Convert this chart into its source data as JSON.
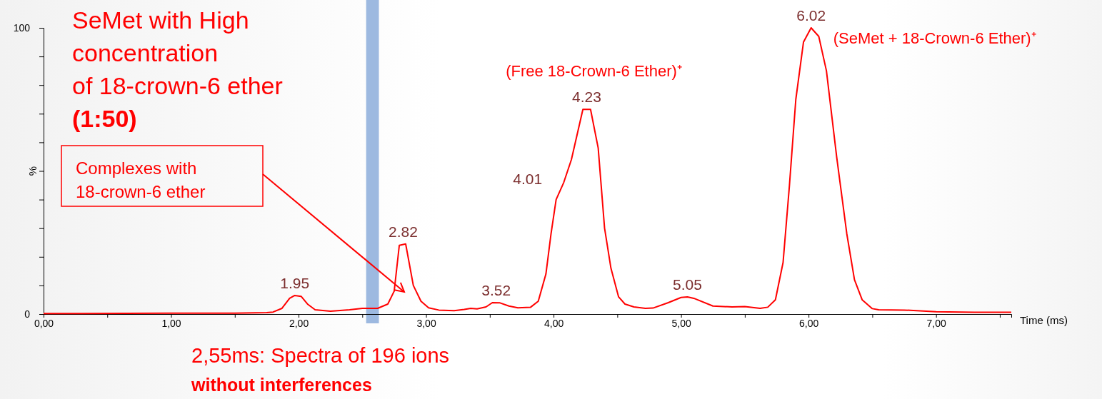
{
  "chart_data": {
    "type": "line",
    "title": "SeMet with High\nconcentration\nof 18-crown-6 ether\n(1:50)",
    "xlabel": "Time (ms)",
    "ylabel": "%",
    "xlim": [
      0,
      7.59
    ],
    "ylim": [
      0,
      100
    ],
    "xticks": [
      {
        "value": 0,
        "label": "0,00"
      },
      {
        "value": 0.5,
        "label": null
      },
      {
        "value": 1,
        "label": "1,00"
      },
      {
        "value": 1.5,
        "label": null
      },
      {
        "value": 2,
        "label": "2,00"
      },
      {
        "value": 2.5,
        "label": null
      },
      {
        "value": 3,
        "label": "3,00"
      },
      {
        "value": 3.5,
        "label": null
      },
      {
        "value": 4,
        "label": "4,00"
      },
      {
        "value": 4.5,
        "label": null
      },
      {
        "value": 5,
        "label": "5,00"
      },
      {
        "value": 5.5,
        "label": null
      },
      {
        "value": 6,
        "label": "6,00"
      },
      {
        "value": 6.5,
        "label": null
      },
      {
        "value": 7,
        "label": "7,00"
      },
      {
        "value": 7.5,
        "label": null
      }
    ],
    "yticks": [
      0,
      {
        "value": 10,
        "label": null
      },
      {
        "value": 20,
        "label": null
      },
      {
        "value": 30,
        "label": null
      },
      {
        "value": 40,
        "label": null
      },
      {
        "value": 50,
        "label": null
      },
      {
        "value": 60,
        "label": null
      },
      {
        "value": 70,
        "label": null
      },
      {
        "value": 80,
        "label": null
      },
      {
        "value": 90,
        "label": null
      },
      100
    ],
    "series": [
      {
        "color": "#ff0000",
        "x": [
          0,
          0.3,
          1.0,
          1.5,
          1.75,
          1.8,
          1.87,
          1.93,
          1.97,
          2.02,
          2.07,
          2.13,
          2.25,
          2.4,
          2.5,
          2.62,
          2.7,
          2.75,
          2.79,
          2.84,
          2.9,
          2.96,
          3.02,
          3.1,
          3.22,
          3.3,
          3.35,
          3.4,
          3.47,
          3.52,
          3.58,
          3.65,
          3.72,
          3.82,
          3.88,
          3.94,
          3.98,
          4.02,
          4.08,
          4.14,
          4.23,
          4.29,
          4.35,
          4.4,
          4.45,
          4.51,
          4.56,
          4.63,
          4.72,
          4.78,
          4.9,
          5.0,
          5.05,
          5.1,
          5.25,
          5.4,
          5.5,
          5.62,
          5.68,
          5.74,
          5.8,
          5.85,
          5.9,
          5.96,
          6.02,
          6.08,
          6.14,
          6.22,
          6.3,
          6.36,
          6.42,
          6.5,
          6.55,
          6.75,
          7.0,
          7.3,
          7.59
        ],
        "values": [
          0.2,
          0.2,
          0.3,
          0.3,
          0.5,
          0.7,
          2,
          5.5,
          6.5,
          6.2,
          3.5,
          1.5,
          1,
          1.5,
          2,
          2,
          3.5,
          8,
          24,
          24.5,
          10,
          4.5,
          2.2,
          1.4,
          1.2,
          1.6,
          2,
          1.8,
          2.5,
          4,
          3.9,
          2.8,
          2.2,
          2.4,
          4.5,
          14,
          28,
          40,
          46,
          54,
          71.5,
          71.5,
          58,
          30,
          16,
          6,
          3.5,
          2.5,
          2,
          2.1,
          4,
          5.8,
          6,
          5.5,
          2.8,
          2.5,
          2.6,
          2,
          2.4,
          5,
          18,
          45,
          75,
          95,
          100,
          97,
          85,
          55,
          28,
          12,
          5,
          1.9,
          1.5,
          1.4,
          0.8,
          0.6,
          0.6
        ]
      }
    ],
    "bands": [
      {
        "axis": "x",
        "from": 2.53,
        "to": 2.63,
        "color": "#9db9e0"
      }
    ],
    "annotations": [
      {
        "text": "1.95",
        "x": 1.97,
        "y": 6.5
      },
      {
        "text": "2.82",
        "x": 2.82,
        "y": 24.5
      },
      {
        "text": "3.52",
        "x": 3.55,
        "y": 4
      },
      {
        "text": "4.01",
        "x": 4.02,
        "y": 40
      },
      {
        "text": "4.23",
        "x": 4.26,
        "y": 71.5
      },
      {
        "text": "5.05",
        "x": 5.05,
        "y": 6
      },
      {
        "text": "6.02",
        "x": 6.02,
        "y": 100
      },
      {
        "text": "(Free 18-Crown-6 Ether)⁺",
        "x": 4.26,
        "y": 71.5
      },
      {
        "text": "(SeMet + 18-Crown-6 Ether)⁺",
        "x": 6.02,
        "y": 100
      },
      "Complexes with\n18-crown-6 ether",
      "2,55ms: Spectra of 196 ions",
      "without interferences"
    ],
    "grid": false,
    "marker": "none",
    "line_style": "solid"
  }
}
